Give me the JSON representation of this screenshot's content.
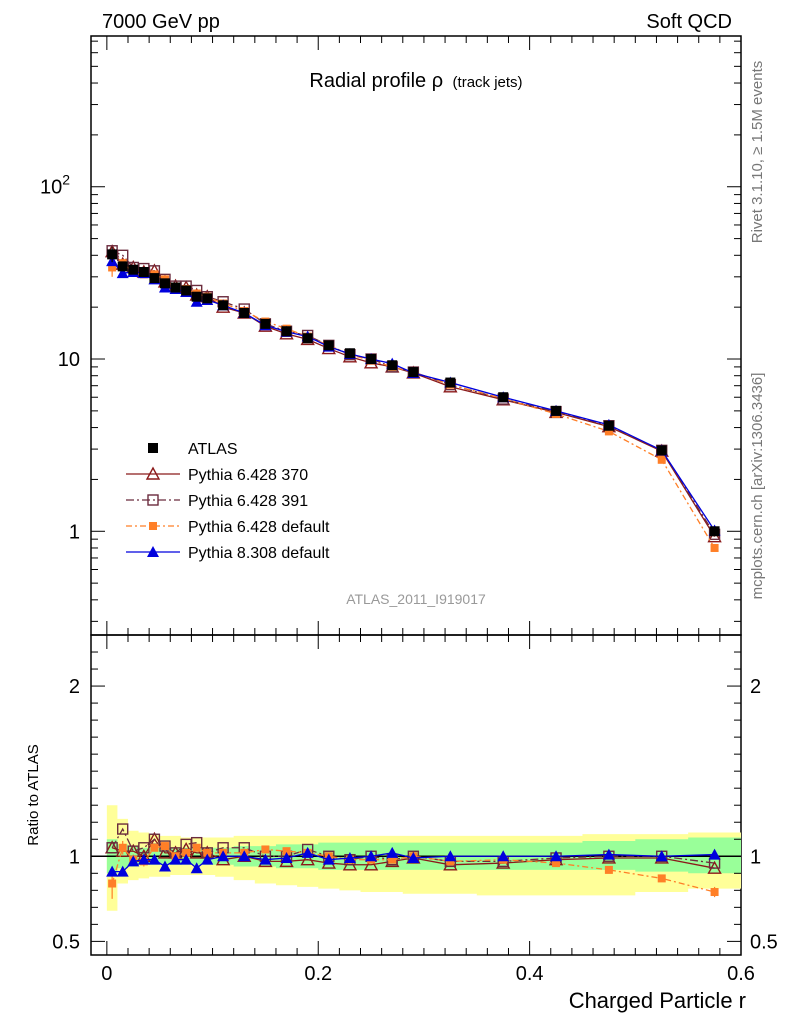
{
  "header": {
    "left": "7000 GeV pp",
    "right": "Soft QCD"
  },
  "side": {
    "rivet": "Rivet 3.1.10, ≥ 1.5M events",
    "mcplots": "mcplots.cern.ch [arXiv:1306.3436]"
  },
  "analysis_tag": "ATLAS_2011_I919017",
  "title_main": "Radial profile ρ",
  "title_sub": "(track jets)",
  "chart_data": [
    {
      "type": "scatter",
      "panel": "main",
      "title": "Radial profile ρ (track jets)",
      "xlabel": "Charged Particle r",
      "ylabel": "",
      "yscale": "log",
      "xlim": [
        -0.015,
        0.6
      ],
      "ylim": [
        0.25,
        750
      ],
      "x_ticks": [
        "0",
        "0.2",
        "0.4",
        "0.6"
      ],
      "y_ticks": [
        "1",
        "10",
        "10^2"
      ],
      "legend_position": "lower-left",
      "x": [
        0.005,
        0.015,
        0.025,
        0.035,
        0.045,
        0.055,
        0.065,
        0.075,
        0.085,
        0.095,
        0.11,
        0.13,
        0.15,
        0.17,
        0.19,
        0.21,
        0.23,
        0.25,
        0.27,
        0.29,
        0.325,
        0.375,
        0.425,
        0.475,
        0.525,
        0.575
      ],
      "series": [
        {
          "name": "ATLAS",
          "marker": "filled-square",
          "color": "#000000",
          "values": [
            40.5,
            34.5,
            33.0,
            32.0,
            29.5,
            27.5,
            26.0,
            25.0,
            23.0,
            22.5,
            20.5,
            18.5,
            16.0,
            14.5,
            13.2,
            12.0,
            10.8,
            10.0,
            9.2,
            8.4,
            7.3,
            6.0,
            5.0,
            4.1,
            2.95,
            1.0
          ],
          "errors": [
            4.0,
            1.5,
            1.0,
            1.0,
            0.8,
            0.6,
            0.5,
            0.5,
            0.4,
            0.4,
            0.3,
            0.3,
            0.25,
            0.2,
            0.2,
            0.2,
            0.15,
            0.15,
            0.15,
            0.12,
            0.1,
            0.08,
            0.07,
            0.06,
            0.05,
            0.03
          ]
        },
        {
          "name": "Pythia 6.428 370",
          "marker": "open-triangle",
          "color": "#8b1a1a",
          "values": [
            42.0,
            35.5,
            34.0,
            32.0,
            32.5,
            28.0,
            26.5,
            26.0,
            23.5,
            23.0,
            20.0,
            18.5,
            15.5,
            14.0,
            13.0,
            11.5,
            10.3,
            9.5,
            9.0,
            8.3,
            6.9,
            5.8,
            4.9,
            4.05,
            2.92,
            0.93
          ]
        },
        {
          "name": "Pythia 6.428 391",
          "marker": "open-square",
          "color": "#6b2c3e",
          "values": [
            42.5,
            40.0,
            34.0,
            33.5,
            32.5,
            29.0,
            26.5,
            26.5,
            25.0,
            23.0,
            21.5,
            19.5,
            16.0,
            14.5,
            13.7,
            12.0,
            10.6,
            10.0,
            9.0,
            8.4,
            7.1,
            5.85,
            4.95,
            4.1,
            2.95,
            0.96
          ]
        },
        {
          "name": "Pythia 6.428 default",
          "marker": "filled-square-small",
          "color": "#ff7f27",
          "values": [
            34.0,
            36.0,
            32.0,
            31.0,
            31.0,
            29.0,
            26.0,
            25.5,
            24.0,
            23.0,
            21.0,
            19.0,
            16.5,
            15.0,
            13.5,
            12.0,
            10.6,
            9.8,
            9.0,
            8.4,
            7.1,
            5.9,
            4.8,
            3.8,
            2.6,
            0.8
          ],
          "errors": [
            4.0,
            1.6,
            1.0,
            0.8,
            0.7,
            0.6,
            0.5,
            0.5,
            0.4,
            0.4,
            0.3,
            0.3,
            0.25,
            0.2,
            0.2,
            0.2,
            0.15,
            0.15,
            0.15,
            0.12,
            0.1,
            0.08,
            0.07,
            0.06,
            0.05,
            0.03
          ]
        },
        {
          "name": "Pythia 8.308 default",
          "marker": "filled-triangle",
          "color": "#0000dd",
          "values": [
            37.0,
            31.5,
            32.0,
            31.5,
            29.0,
            26.0,
            25.5,
            24.5,
            21.5,
            22.0,
            20.5,
            18.5,
            15.7,
            14.4,
            13.5,
            11.8,
            10.7,
            10.0,
            9.4,
            8.3,
            7.3,
            6.0,
            5.0,
            4.15,
            2.95,
            1.01
          ]
        }
      ]
    },
    {
      "type": "scatter",
      "panel": "ratio",
      "ylabel": "Ratio to ATLAS",
      "xlabel": "Charged Particle r",
      "ylim": [
        0.42,
        2.3
      ],
      "y_ticks": [
        "0.5",
        "1",
        "2"
      ],
      "x_ticks": [
        "0",
        "0.2",
        "0.4",
        "0.6"
      ],
      "band_green": [
        [
          0.9,
          1.1
        ],
        [
          0.93,
          1.07
        ],
        [
          0.94,
          1.06
        ],
        [
          0.95,
          1.05
        ],
        [
          0.95,
          1.05
        ],
        [
          0.95,
          1.05
        ],
        [
          0.95,
          1.05
        ],
        [
          0.95,
          1.05
        ],
        [
          0.95,
          1.05
        ],
        [
          0.95,
          1.05
        ],
        [
          0.95,
          1.05
        ],
        [
          0.94,
          1.06
        ],
        [
          0.94,
          1.06
        ],
        [
          0.93,
          1.07
        ],
        [
          0.93,
          1.07
        ],
        [
          0.92,
          1.08
        ],
        [
          0.92,
          1.08
        ],
        [
          0.92,
          1.08
        ],
        [
          0.92,
          1.08
        ],
        [
          0.92,
          1.08
        ],
        [
          0.92,
          1.08
        ],
        [
          0.92,
          1.08
        ],
        [
          0.92,
          1.08
        ],
        [
          0.92,
          1.09
        ],
        [
          0.91,
          1.1
        ],
        [
          0.9,
          1.11
        ]
      ],
      "band_yellow": [
        [
          0.68,
          1.3
        ],
        [
          0.84,
          1.22
        ],
        [
          0.86,
          1.15
        ],
        [
          0.87,
          1.14
        ],
        [
          0.88,
          1.13
        ],
        [
          0.88,
          1.12
        ],
        [
          0.89,
          1.12
        ],
        [
          0.89,
          1.11
        ],
        [
          0.89,
          1.11
        ],
        [
          0.89,
          1.11
        ],
        [
          0.88,
          1.11
        ],
        [
          0.86,
          1.12
        ],
        [
          0.84,
          1.12
        ],
        [
          0.83,
          1.12
        ],
        [
          0.82,
          1.12
        ],
        [
          0.81,
          1.12
        ],
        [
          0.8,
          1.12
        ],
        [
          0.79,
          1.12
        ],
        [
          0.79,
          1.12
        ],
        [
          0.78,
          1.12
        ],
        [
          0.78,
          1.12
        ],
        [
          0.77,
          1.12
        ],
        [
          0.77,
          1.12
        ],
        [
          0.77,
          1.13
        ],
        [
          0.79,
          1.13
        ],
        [
          0.81,
          1.14
        ]
      ],
      "series": [
        {
          "name": "ATLAS",
          "values": [
            1,
            1,
            1,
            1,
            1,
            1,
            1,
            1,
            1,
            1,
            1,
            1,
            1,
            1,
            1,
            1,
            1,
            1,
            1,
            1,
            1,
            1,
            1,
            1,
            1,
            1
          ]
        },
        {
          "name": "Pythia 6.428 370",
          "values": [
            1.05,
            1.03,
            1.03,
            1.0,
            1.1,
            1.02,
            1.02,
            1.04,
            1.02,
            1.02,
            0.98,
            1.0,
            0.97,
            0.97,
            0.98,
            0.96,
            0.95,
            0.95,
            0.97,
            0.99,
            0.95,
            0.96,
            0.98,
            0.99,
            0.99,
            0.93
          ]
        },
        {
          "name": "Pythia 6.428 391",
          "values": [
            1.05,
            1.16,
            1.03,
            1.05,
            1.1,
            1.06,
            1.02,
            1.07,
            1.08,
            1.02,
            1.05,
            1.05,
            1.0,
            1.0,
            1.04,
            1.0,
            0.98,
            1.0,
            0.98,
            1.0,
            0.97,
            0.97,
            0.99,
            1.0,
            1.0,
            0.96
          ]
        },
        {
          "name": "Pythia 6.428 default",
          "values": [
            0.84,
            1.05,
            0.98,
            0.97,
            1.05,
            1.06,
            1.0,
            1.02,
            1.05,
            1.02,
            1.02,
            1.02,
            1.04,
            1.03,
            1.02,
            1.0,
            0.98,
            0.98,
            0.98,
            1.0,
            0.97,
            0.98,
            0.96,
            0.92,
            0.87,
            0.79
          ],
          "errors": [
            0.09,
            0.04,
            0.03,
            0.03,
            0.02,
            0.02,
            0.02,
            0.02,
            0.02,
            0.02,
            0.02,
            0.02,
            0.02,
            0.02,
            0.02,
            0.02,
            0.02,
            0.02,
            0.02,
            0.02,
            0.02,
            0.02,
            0.02,
            0.02,
            0.02,
            0.03
          ]
        },
        {
          "name": "Pythia 8.308 default",
          "values": [
            0.91,
            0.91,
            0.97,
            0.98,
            0.98,
            0.94,
            0.98,
            0.98,
            0.93,
            0.98,
            1.0,
            1.0,
            0.98,
            0.99,
            1.02,
            0.98,
            0.99,
            1.0,
            1.02,
            0.99,
            1.0,
            1.0,
            1.0,
            1.01,
            1.0,
            1.01
          ]
        }
      ]
    }
  ]
}
